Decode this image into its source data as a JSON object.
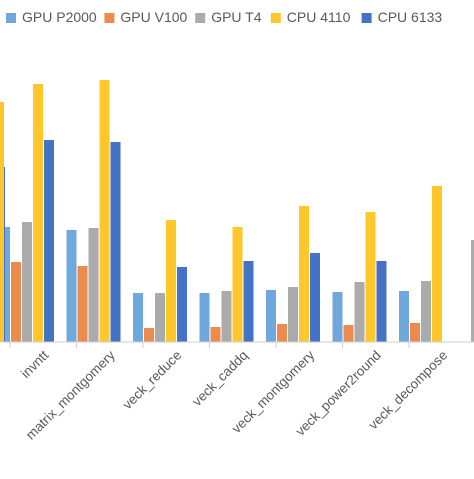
{
  "chart_data": {
    "type": "bar",
    "title": "",
    "xlabel": "",
    "ylabel": "",
    "legend_position": "top",
    "grid": false,
    "categories": [
      "invntt",
      "matrix_montgomery",
      "veck_reduce",
      "veck_caddq",
      "veck_montgomery",
      "veck_power2round",
      "veck_decompose",
      ""
    ],
    "series": [
      {
        "name": "GPU P2000",
        "color": "#6FA8DC",
        "values": [
          115,
          112,
          49,
          49,
          52,
          50,
          51,
          null
        ]
      },
      {
        "name": "GPU V100",
        "color": "#ED8B4E",
        "values": [
          80,
          76,
          14,
          15,
          18,
          17,
          19,
          null
        ]
      },
      {
        "name": "GPU T4",
        "color": "#ABABAB",
        "values": [
          120,
          114,
          49,
          51,
          55,
          60,
          61,
          null
        ]
      },
      {
        "name": "CPU 4110",
        "color": "#FFC72C",
        "values": [
          258,
          262,
          122,
          115,
          136,
          130,
          156,
          null
        ]
      },
      {
        "name": "CPU 6133",
        "color": "#4472C4",
        "values": [
          202,
          200,
          75,
          81,
          89,
          81,
          null,
          null
        ]
      }
    ],
    "partial_series": {
      "name": "",
      "color": "#ABABAB",
      "value": 102
    },
    "ylim": [
      0,
      300
    ]
  }
}
